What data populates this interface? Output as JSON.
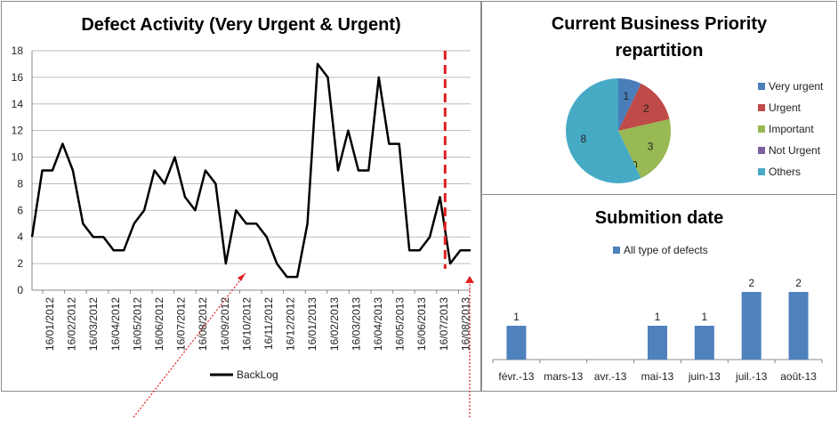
{
  "chart_data": [
    {
      "type": "line",
      "title": "Defect Activity (Very Urgent & Urgent)",
      "xlabel": "",
      "ylabel": "",
      "ylim": [
        0,
        18
      ],
      "yticks": [
        0,
        2,
        4,
        6,
        8,
        10,
        12,
        14,
        16,
        18
      ],
      "xticks": [
        "16/01/2012",
        "16/02/2012",
        "16/03/2012",
        "16/04/2012",
        "16/05/2012",
        "16/06/2012",
        "16/07/2012",
        "16/08/2012",
        "16/09/2012",
        "16/10/2012",
        "16/11/2012",
        "16/12/2012",
        "16/01/2013",
        "16/02/2013",
        "16/03/2013",
        "16/04/2013",
        "16/05/2013",
        "16/06/2013",
        "16/07/2013",
        "16/08/2013"
      ],
      "grid": true,
      "legend": "bottom",
      "marker_after_point": 40,
      "series": [
        {
          "name": "BackLog",
          "color": "#000000",
          "values": [
            4,
            9,
            9,
            11,
            9,
            5,
            4,
            4,
            3,
            3,
            5,
            6,
            9,
            8,
            10,
            7,
            6,
            9,
            8,
            2,
            6,
            5,
            5,
            4,
            2,
            1,
            1,
            5,
            17,
            16,
            9,
            12,
            9,
            9,
            16,
            11,
            11,
            3,
            3,
            4,
            7,
            2,
            3,
            3
          ]
        }
      ]
    },
    {
      "type": "pie",
      "title": "Current  Business Priority repartition",
      "legend": "right",
      "slices": [
        {
          "label": "Very urgent",
          "value": 1,
          "color": "#4a7ebb"
        },
        {
          "label": "Urgent",
          "value": 2,
          "color": "#be4b48"
        },
        {
          "label": "Important",
          "value": 3,
          "color": "#98b954"
        },
        {
          "label": "Not Urgent",
          "value": 0,
          "color": "#7d60a0"
        },
        {
          "label": "Others",
          "value": 8,
          "color": "#46aac5"
        }
      ]
    },
    {
      "type": "bar",
      "title": "Submition date",
      "categories": [
        "févr.-13",
        "mars-13",
        "avr.-13",
        "mai-13",
        "juin-13",
        "juil.-13",
        "août-13"
      ],
      "legend": "top",
      "series": [
        {
          "name": "All type of defects",
          "color": "#4f81bd",
          "values": [
            1,
            0,
            0,
            1,
            1,
            2,
            2
          ]
        }
      ],
      "ylim": [
        0,
        2
      ]
    }
  ]
}
